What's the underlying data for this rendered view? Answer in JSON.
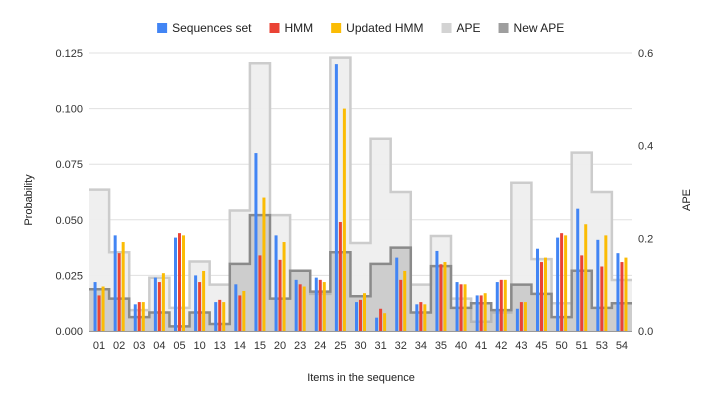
{
  "chart_data": {
    "type": "bar",
    "title": "",
    "xlabel": "Items in the sequence",
    "ylabel": "Probability",
    "y2label": "APE",
    "categories": [
      "01",
      "02",
      "03",
      "04",
      "05",
      "10",
      "13",
      "14",
      "15",
      "20",
      "23",
      "24",
      "25",
      "30",
      "31",
      "32",
      "34",
      "35",
      "40",
      "41",
      "42",
      "43",
      "45",
      "50",
      "51",
      "53",
      "54"
    ],
    "ylim": [
      0,
      0.125
    ],
    "yticks": [
      0,
      0.025,
      0.05,
      0.075,
      0.1,
      0.125
    ],
    "ytick_labels": [
      "0.000",
      "0.025",
      "0.050",
      "0.075",
      "0.100",
      "0.125"
    ],
    "y2lim": [
      0,
      0.6
    ],
    "y2ticks": [
      0,
      0.2,
      0.4,
      0.6
    ],
    "y2tick_labels": [
      "0.0",
      "0.2",
      "0.4",
      "0.6"
    ],
    "grid": true,
    "legend_position": "top",
    "series": [
      {
        "name": "Sequences set",
        "type": "bar",
        "axis": "left",
        "color": "#4285F4",
        "values": [
          0.022,
          0.043,
          0.012,
          0.024,
          0.042,
          0.025,
          0.013,
          0.021,
          0.08,
          0.043,
          0.023,
          0.024,
          0.12,
          0.013,
          0.006,
          0.033,
          0.012,
          0.036,
          0.022,
          0.016,
          0.022,
          0.01,
          0.037,
          0.042,
          0.055,
          0.041,
          0.035
        ]
      },
      {
        "name": "HMM",
        "type": "bar",
        "axis": "left",
        "color": "#EA4335",
        "values": [
          0.016,
          0.035,
          0.013,
          0.022,
          0.044,
          0.022,
          0.014,
          0.016,
          0.034,
          0.032,
          0.021,
          0.023,
          0.049,
          0.014,
          0.01,
          0.023,
          0.013,
          0.03,
          0.021,
          0.016,
          0.023,
          0.013,
          0.031,
          0.044,
          0.034,
          0.029,
          0.031
        ]
      },
      {
        "name": "Updated HMM",
        "type": "bar",
        "axis": "left",
        "color": "#FBBC04",
        "values": [
          0.02,
          0.04,
          0.013,
          0.026,
          0.043,
          0.027,
          0.013,
          0.018,
          0.06,
          0.04,
          0.02,
          0.022,
          0.1,
          0.017,
          0.008,
          0.027,
          0.012,
          0.031,
          0.021,
          0.017,
          0.023,
          0.013,
          0.033,
          0.043,
          0.048,
          0.043,
          0.033
        ]
      },
      {
        "name": "APE",
        "type": "area",
        "axis": "right",
        "color": "#D0D0D0",
        "values": [
          0.305,
          0.17,
          0.045,
          0.115,
          0.05,
          0.15,
          0.1,
          0.26,
          0.578,
          0.25,
          0.13,
          0.08,
          0.59,
          0.19,
          0.415,
          0.3,
          0.1,
          0.205,
          0.07,
          0.02,
          0.04,
          0.32,
          0.155,
          0.06,
          0.385,
          0.3,
          0.11
        ]
      },
      {
        "name": "New APE",
        "type": "area",
        "axis": "right",
        "color": "#9E9E9E",
        "values": [
          0.09,
          0.07,
          0.03,
          0.04,
          0.01,
          0.04,
          0.015,
          0.145,
          0.25,
          0.07,
          0.13,
          0.085,
          0.17,
          0.075,
          0.145,
          0.18,
          0.04,
          0.14,
          0.05,
          0.06,
          0.045,
          0.1,
          0.08,
          0.03,
          0.13,
          0.05,
          0.06
        ]
      }
    ]
  }
}
